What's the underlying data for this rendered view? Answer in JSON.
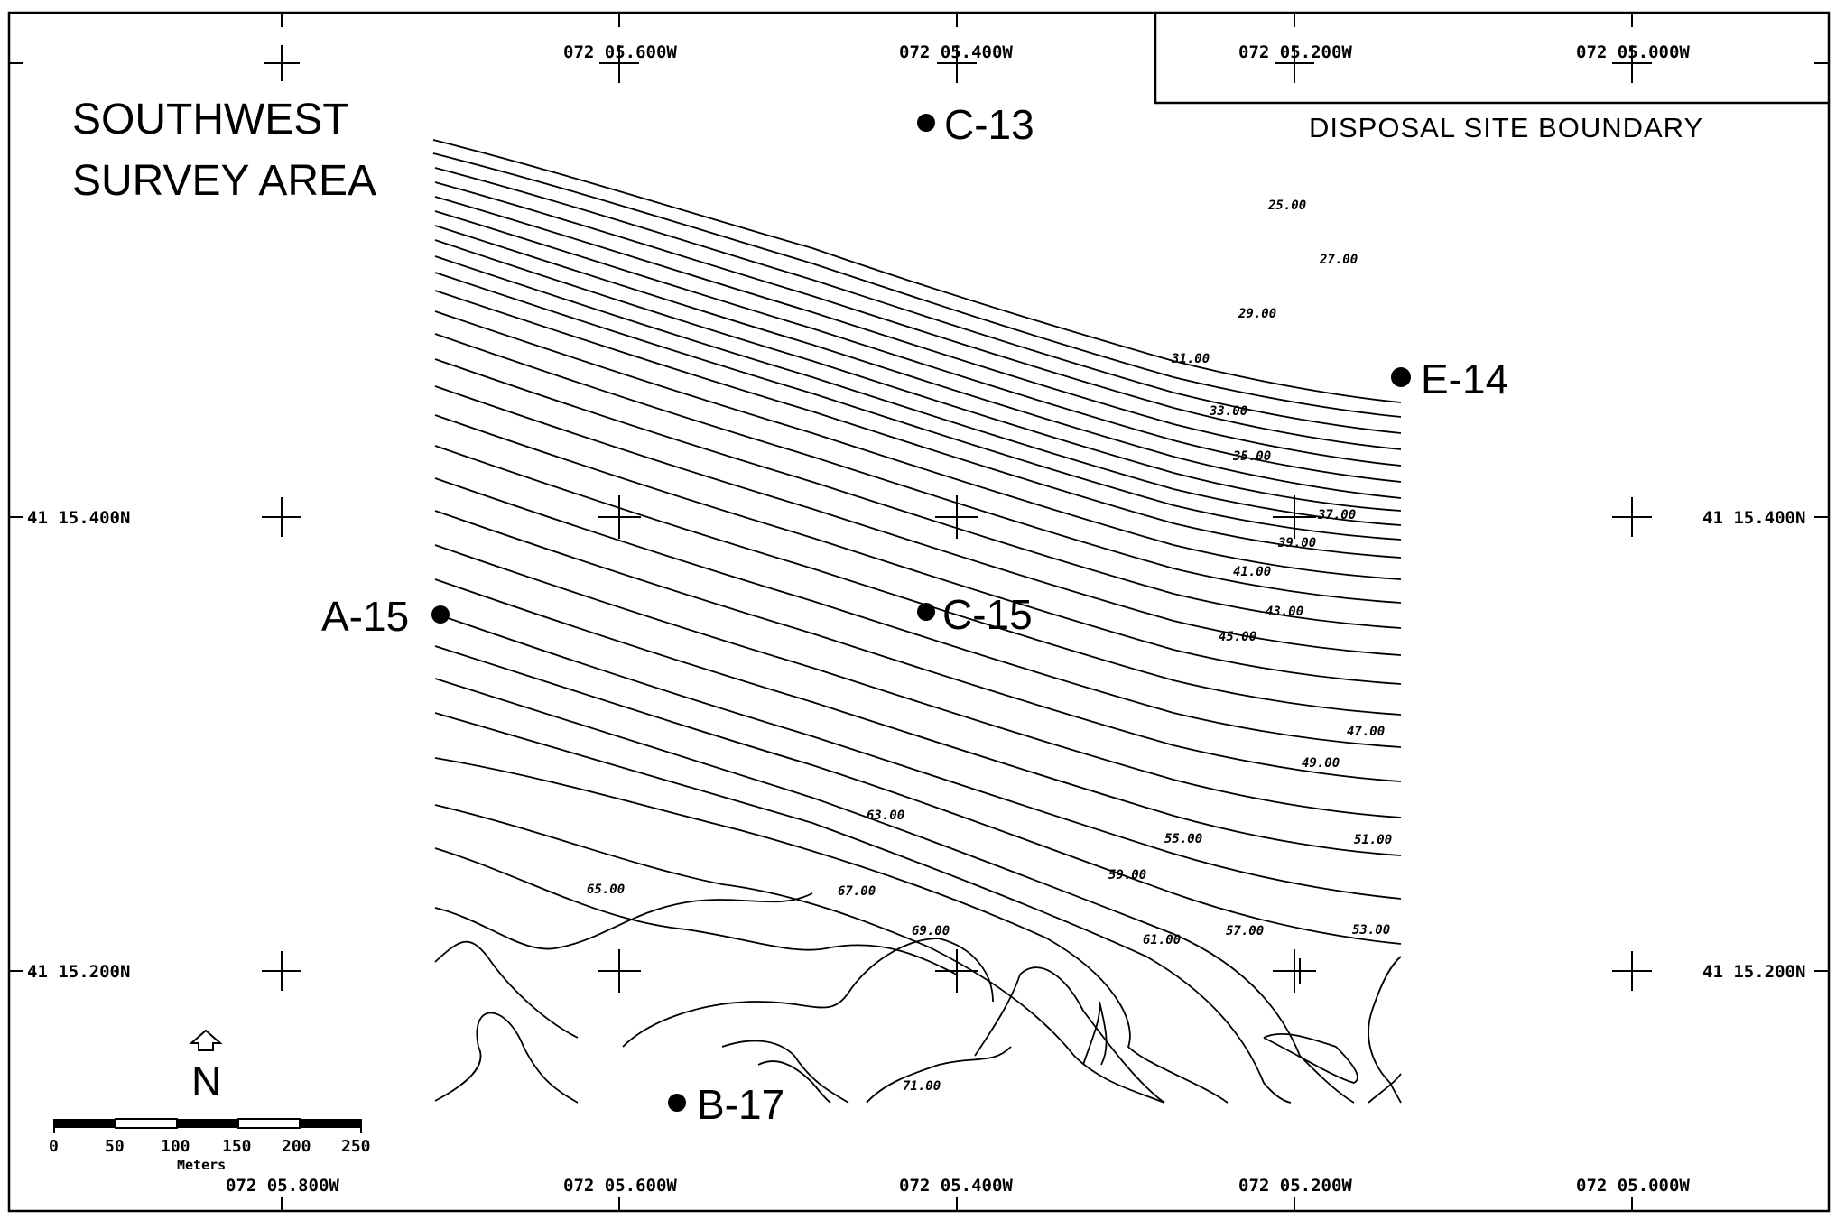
{
  "title": {
    "line1": "SOUTHWEST",
    "line2": "SURVEY AREA"
  },
  "boundary_label": "DISPOSAL SITE BOUNDARY",
  "longitude_labels": [
    "072 05.800W",
    "072 05.600W",
    "072 05.400W",
    "072 05.200W",
    "072 05.000W"
  ],
  "latitude_labels": [
    "41 15.400N",
    "41 15.200N"
  ],
  "stations": [
    "C-13",
    "E-14",
    "A-15",
    "C-15",
    "B-17"
  ],
  "north_label": "N",
  "scale_bar": {
    "ticks": [
      "0",
      "50",
      "100",
      "150",
      "200",
      "250"
    ],
    "units": "Meters"
  },
  "contour_labels": [
    "25.00",
    "27.00",
    "29.00",
    "31.00",
    "33.00",
    "35.00",
    "37.00",
    "39.00",
    "41.00",
    "43.00",
    "45.00",
    "47.00",
    "49.00",
    "51.00",
    "53.00",
    "55.00",
    "57.00",
    "59.00",
    "61.00",
    "63.00",
    "65.00",
    "67.00",
    "69.00",
    "71.00"
  ]
}
